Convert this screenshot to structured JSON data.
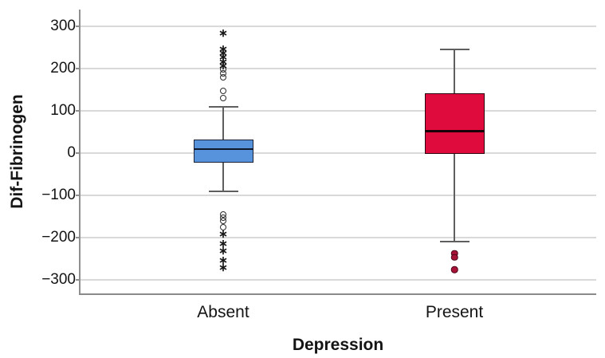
{
  "chart_data": {
    "type": "boxplot",
    "title": "",
    "ylabel": "Dif-Fibrinogen",
    "xlabel": "Depression",
    "categories": [
      "Absent",
      "Present"
    ],
    "ytick_labels": [
      "300",
      "200",
      "100",
      "0",
      "−100",
      "−200",
      "−300"
    ],
    "ytick_values": [
      300,
      200,
      100,
      0,
      -100,
      -200,
      -300
    ],
    "ylim": [
      -332,
      340
    ],
    "grid": true,
    "legend": false,
    "series": [
      {
        "name": "Absent",
        "fill_color": "#5693DC",
        "border_color": "#1b2235",
        "median_color": "#10182b",
        "q1": -22,
        "median": 10,
        "q3": 32,
        "whisker_low": -90,
        "whisker_high": 110,
        "outliers_circle": [
          199,
          189,
          179,
          147,
          131,
          -145,
          -153,
          -161,
          -176
        ],
        "outliers_extreme": [
          285,
          247,
          238,
          228,
          218,
          208,
          -190,
          -214,
          -230,
          -252,
          -270
        ],
        "outliers_filled": []
      },
      {
        "name": "Present",
        "fill_color": "#DF0B3D",
        "border_color": "#2e050f",
        "median_color": "#1a0308",
        "q1": -2,
        "median": 52,
        "q3": 142,
        "whisker_low": -210,
        "whisker_high": 245,
        "outliers_circle": [],
        "outliers_extreme": [],
        "outliers_filled": [
          -237,
          -247,
          -276
        ]
      }
    ],
    "outlier_marker_colors": {
      "circle_stroke": "#2b2b2b",
      "extreme_color": "#1a1a1a",
      "filled_fill": "#A81337",
      "filled_stroke": "#4a0817"
    }
  }
}
